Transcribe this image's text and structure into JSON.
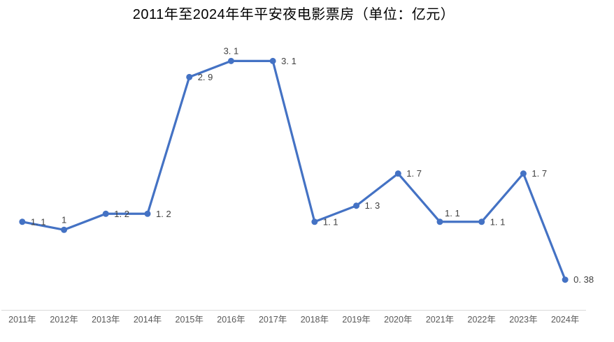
{
  "title": "2011年至2024年年平安夜电影票房（单位：亿元）",
  "colors": {
    "line": "#4472C4",
    "marker": "#4472C4",
    "axis_line": "#D9D9D9",
    "data_label": "#404040",
    "tick_label": "#595959",
    "background": "#FFFFFF"
  },
  "chart_data": {
    "type": "line",
    "title": "2011年至2024年年平安夜电影票房（单位：亿元）",
    "unit": "亿元",
    "categories": [
      "2011年",
      "2012年",
      "2013年",
      "2014年",
      "2015年",
      "2016年",
      "2017年",
      "2018年",
      "2019年",
      "2020年",
      "2021年",
      "2022年",
      "2023年",
      "2024年"
    ],
    "values": [
      1.1,
      1,
      1.2,
      1.2,
      2.9,
      3.1,
      3.1,
      1.1,
      1.3,
      1.7,
      1.1,
      1.1,
      1.7,
      0.38
    ],
    "data_labels": [
      "1. 1",
      "1",
      "1. 2",
      "1. 2",
      "2. 9",
      "3. 1",
      "3. 1",
      "1. 1",
      "1. 3",
      "1. 7",
      "1. 1",
      "1. 1",
      "1. 7",
      "0. 38"
    ],
    "label_positions": [
      "right",
      "above",
      "right",
      "right",
      "right",
      "above",
      "right",
      "right",
      "right",
      "right",
      "above-right",
      "right",
      "right",
      "right"
    ],
    "xlabel": "",
    "ylabel": "",
    "ylim": [
      0,
      3.5
    ],
    "grid": false,
    "legend": false,
    "marker": "circle",
    "y_axis_visible": false
  }
}
